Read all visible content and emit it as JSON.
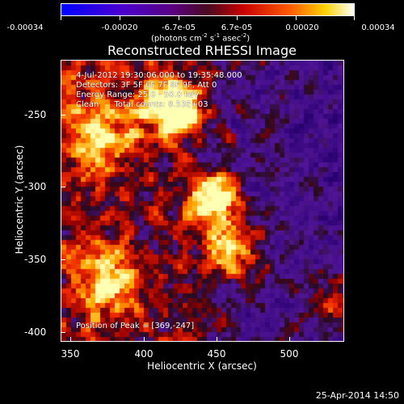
{
  "colorbar": {
    "tick_labels": [
      "-0.00034",
      "-0.00020",
      "-6.7e-05",
      "6.7e-05",
      "0.00020",
      "0.00034"
    ],
    "units": "(photons cm",
    "units_exp1": "-2",
    "units_mid": " s",
    "units_exp2": "-1",
    "units_end": " asec",
    "units_exp3": "-2",
    "units_close": ")"
  },
  "title": "Reconstructed RHESSI Image",
  "overlay": {
    "time_range": "4-Jul-2012 19:30:06.000 to 19:35:48.000",
    "detectors": "Detectors: 3F 5F 6F 7F 8F 9F, Att 0",
    "energy": "Energy Range: 25.0 - 50.0 keV",
    "method": "Clean      Total counts: 8.53E+03",
    "peak": "Position of Peak = [369,-247]"
  },
  "axes": {
    "xlabel": "Heliocentric X (arcsec)",
    "ylabel": "Heliocentric Y (arcsec)",
    "x_ticks": [
      "350",
      "400",
      "450",
      "500"
    ],
    "y_ticks": [
      "-250",
      "-300",
      "-350",
      "-400"
    ]
  },
  "date_stamp": "25-Apr-2014 14:50"
}
